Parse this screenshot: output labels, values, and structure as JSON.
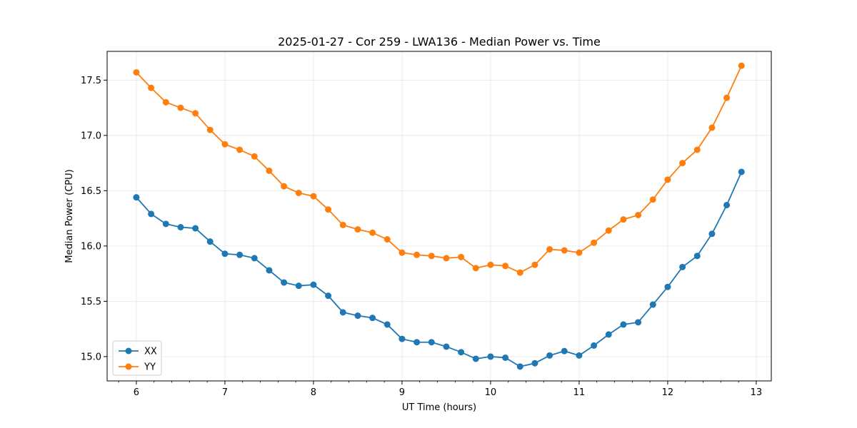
{
  "chart_data": {
    "type": "line",
    "title": "2025-01-27 - Cor 259 - LWA136 - Median Power vs. Time",
    "xlabel": "UT Time (hours)",
    "ylabel": "Median Power (CPU)",
    "xlim": [
      5.67,
      13.17
    ],
    "ylim": [
      14.78,
      17.76
    ],
    "xticks": [
      6,
      7,
      8,
      9,
      10,
      11,
      12,
      13
    ],
    "xtick_labels": [
      "6",
      "7",
      "8",
      "9",
      "10",
      "11",
      "12",
      "13"
    ],
    "yticks": [
      15.0,
      15.5,
      16.0,
      16.5,
      17.0,
      17.5
    ],
    "ytick_labels": [
      "15.0",
      "15.5",
      "16.0",
      "16.5",
      "17.0",
      "17.5"
    ],
    "grid": true,
    "legend_position": "lower-left",
    "x": [
      6.0,
      6.1667,
      6.3333,
      6.5,
      6.6667,
      6.8333,
      7.0,
      7.1667,
      7.3333,
      7.5,
      7.6667,
      7.8333,
      8.0,
      8.1667,
      8.3333,
      8.5,
      8.6667,
      8.8333,
      9.0,
      9.1667,
      9.3333,
      9.5,
      9.6667,
      9.8333,
      10.0,
      10.1667,
      10.3333,
      10.5,
      10.6667,
      10.8333,
      11.0,
      11.1667,
      11.3333,
      11.5,
      11.6667,
      11.8333,
      12.0,
      12.1667,
      12.3333,
      12.5,
      12.6667,
      12.8333
    ],
    "series": [
      {
        "name": "XX",
        "color": "#1f77b4",
        "values": [
          16.44,
          16.29,
          16.2,
          16.17,
          16.16,
          16.04,
          15.93,
          15.92,
          15.89,
          15.78,
          15.67,
          15.64,
          15.65,
          15.55,
          15.4,
          15.37,
          15.35,
          15.29,
          15.16,
          15.13,
          15.13,
          15.09,
          15.04,
          14.98,
          15.0,
          14.99,
          14.91,
          14.94,
          15.01,
          15.05,
          15.01,
          15.1,
          15.2,
          15.29,
          15.31,
          15.47,
          15.63,
          15.81,
          15.91,
          16.11,
          16.37,
          16.67
        ]
      },
      {
        "name": "YY",
        "color": "#ff7f0e",
        "values": [
          17.57,
          17.43,
          17.3,
          17.25,
          17.2,
          17.05,
          16.92,
          16.87,
          16.81,
          16.68,
          16.54,
          16.48,
          16.45,
          16.33,
          16.19,
          16.15,
          16.12,
          16.06,
          15.94,
          15.92,
          15.91,
          15.89,
          15.9,
          15.8,
          15.83,
          15.82,
          15.76,
          15.83,
          15.97,
          15.96,
          15.94,
          16.03,
          16.14,
          16.24,
          16.28,
          16.42,
          16.6,
          16.75,
          16.87,
          17.07,
          17.34,
          17.63
        ]
      }
    ]
  }
}
